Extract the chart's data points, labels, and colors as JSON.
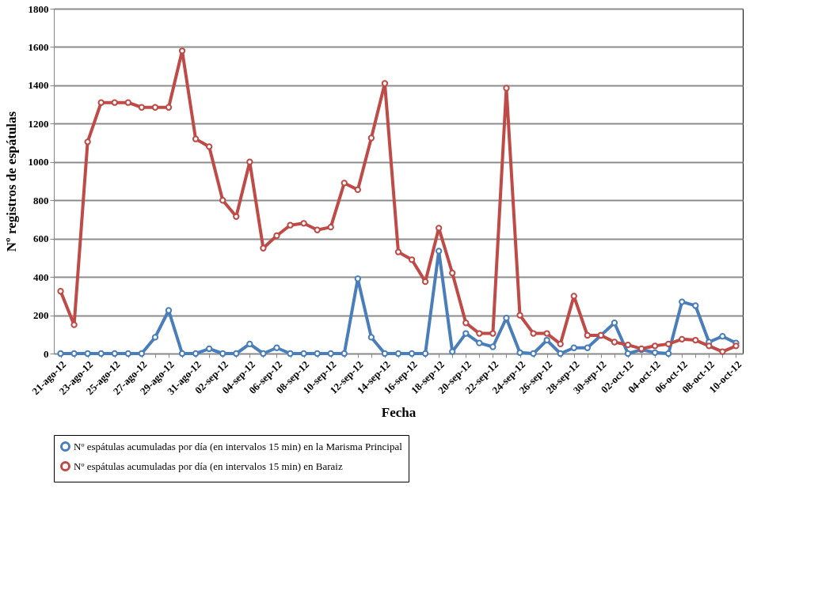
{
  "chart_data": {
    "type": "line",
    "xlabel": "Fecha",
    "ylabel": "Nº registros de espátulas",
    "categories": [
      "21-ago-12",
      null,
      "23-ago-12",
      null,
      "25-ago-12",
      null,
      "27-ago-12",
      null,
      "29-ago-12",
      null,
      "31-ago-12",
      null,
      "02-sep-12",
      null,
      "04-sep-12",
      null,
      "06-sep-12",
      null,
      "08-sep-12",
      null,
      "10-sep-12",
      null,
      "12-sep-12",
      null,
      "14-sep-12",
      null,
      "16-sep-12",
      null,
      "18-sep-12",
      null,
      "20-sep-12",
      null,
      "22-sep-12",
      null,
      "24-sep-12",
      null,
      "26-sep-12",
      null,
      "28-sep-12",
      null,
      "30-sep-12",
      null,
      "02-oct-12",
      null,
      "04-oct-12",
      null,
      "06-oct-12",
      null,
      "08-oct-12",
      null,
      "10-oct-12"
    ],
    "series": [
      {
        "name": "Nº espátulas acumuladas por día (en intervalos 15 min) en la Marisma Principal",
        "color": "#4a7ebb",
        "values": [
          0,
          0,
          0,
          0,
          0,
          0,
          0,
          85,
          225,
          0,
          0,
          25,
          0,
          0,
          50,
          0,
          30,
          0,
          0,
          0,
          0,
          0,
          390,
          85,
          0,
          0,
          0,
          0,
          535,
          10,
          105,
          55,
          35,
          185,
          5,
          0,
          70,
          0,
          30,
          30,
          95,
          160,
          0,
          20,
          5,
          0,
          270,
          250,
          60,
          90,
          55
        ]
      },
      {
        "name": "Nº espátulas acumuladas por día (en intervalos 15 min) en Baraiz",
        "color": "#be4b48",
        "values": [
          325,
          150,
          1105,
          1310,
          1310,
          1310,
          1285,
          1285,
          1285,
          1580,
          1120,
          1080,
          800,
          715,
          1000,
          550,
          615,
          670,
          680,
          645,
          660,
          890,
          855,
          1125,
          1410,
          530,
          490,
          375,
          655,
          420,
          160,
          105,
          105,
          1385,
          200,
          105,
          105,
          50,
          300,
          95,
          95,
          60,
          45,
          25,
          40,
          50,
          75,
          70,
          40,
          10,
          40
        ]
      }
    ],
    "ylim": [
      0,
      1800
    ],
    "yticks": [
      0,
      200,
      400,
      600,
      800,
      1000,
      1200,
      1400,
      1600,
      1800
    ],
    "grid": "y",
    "legend": "bottom",
    "marker": "circle",
    "line_style": "solid"
  }
}
